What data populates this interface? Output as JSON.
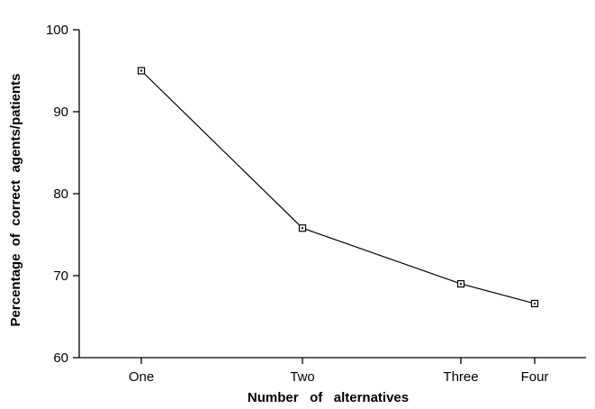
{
  "chart_data": {
    "type": "line",
    "title": "",
    "xlabel": "Number   of   alternatives",
    "ylabel": "Percentage  of  correct  agents/patients",
    "categories": [
      "One",
      "Two",
      "Three",
      "Four"
    ],
    "series": [
      {
        "values": [
          95,
          75.8,
          69,
          66.6
        ]
      }
    ],
    "ylim": [
      60,
      100
    ],
    "yticks": [
      60,
      70,
      80,
      90,
      100
    ],
    "grid": false,
    "marker": "open-square",
    "colors": {
      "line": "#000000",
      "axis": "#000000"
    }
  }
}
